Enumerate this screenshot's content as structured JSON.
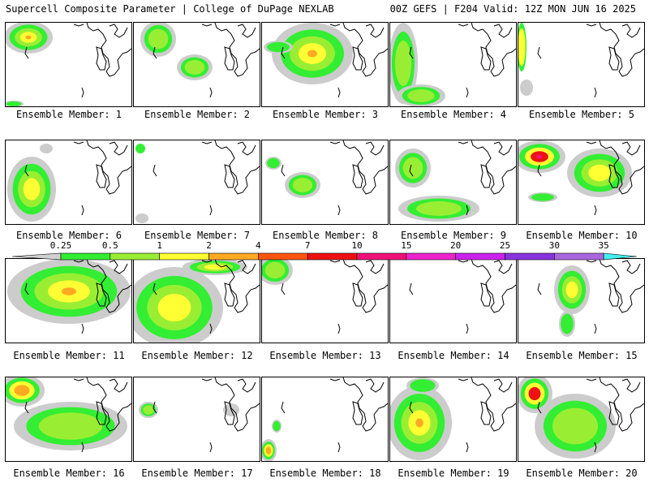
{
  "header": {
    "left_title": "Supercell Composite Parameter | College of DuPage NEXLAB",
    "right_title": "00Z GEFS | F204 Valid: 12Z MON JUN 16 2025"
  },
  "members": [
    {
      "label": "Ensemble Member: 1"
    },
    {
      "label": "Ensemble Member: 2"
    },
    {
      "label": "Ensemble Member: 3"
    },
    {
      "label": "Ensemble Member: 4"
    },
    {
      "label": "Ensemble Member: 5"
    },
    {
      "label": "Ensemble Member: 6"
    },
    {
      "label": "Ensemble Member: 7"
    },
    {
      "label": "Ensemble Member: 8"
    },
    {
      "label": "Ensemble Member: 9"
    },
    {
      "label": "Ensemble Member: 10"
    },
    {
      "label": "Ensemble Member: 11"
    },
    {
      "label": "Ensemble Member: 12"
    },
    {
      "label": "Ensemble Member: 13"
    },
    {
      "label": "Ensemble Member: 14"
    },
    {
      "label": "Ensemble Member: 15"
    },
    {
      "label": "Ensemble Member: 16"
    },
    {
      "label": "Ensemble Member: 17"
    },
    {
      "label": "Ensemble Member: 18"
    },
    {
      "label": "Ensemble Member: 19"
    },
    {
      "label": "Ensemble Member: 20"
    }
  ],
  "colorbar": {
    "ticks": [
      "0.25",
      "0.5",
      "1",
      "2",
      "4",
      "7",
      "10",
      "15",
      "20",
      "25",
      "30",
      "35"
    ],
    "colors": [
      "#d0d0d0",
      "#33ee33",
      "#99ee33",
      "#ffff33",
      "#ffaa22",
      "#ff5511",
      "#ee1111",
      "#ee1177",
      "#ee22cc",
      "#cc22ee",
      "#8833dd",
      "#aa66dd",
      "#44eeee"
    ]
  }
}
